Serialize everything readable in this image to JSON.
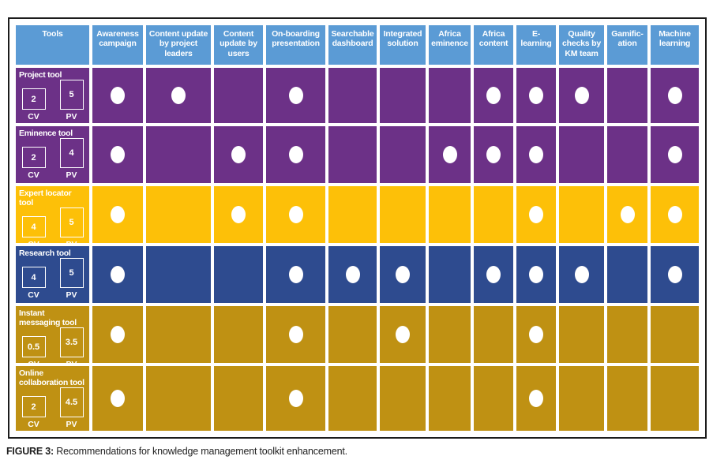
{
  "figure": {
    "caption_label": "FIGURE 3:",
    "caption_text": "Recommendations for knowledge management toolkit enhancement."
  },
  "colors": {
    "header_bg": "#5b9bd5",
    "header_text": "#ffffff",
    "dot": "#ffffff",
    "purple": "#6c3187",
    "yellow": "#fdc008",
    "dark_blue": "#2e4b8f",
    "dark_gold": "#bf9113",
    "frame_border": "#1c1c1c"
  },
  "chart_data": {
    "type": "table",
    "title": "Recommendations for knowledge management toolkit enhancement",
    "columns": [
      "Tools",
      "Awareness campaign",
      "Content update by project leaders",
      "Content update by users",
      "On-boarding presentation",
      "Searchable dashboard",
      "Integrated solution",
      "Africa eminence",
      "Africa content",
      "E-learning",
      "Quality checks by KM team",
      "Gamific-ation",
      "Machine learning"
    ],
    "cv_label": "CV",
    "pv_label": "PV",
    "rows": [
      {
        "tool": "Project tool",
        "cv": "2",
        "pv": "5",
        "color": "purple",
        "dots": [
          1,
          1,
          0,
          1,
          0,
          0,
          0,
          1,
          1,
          1,
          0,
          1
        ]
      },
      {
        "tool": "Eminence tool",
        "cv": "2",
        "pv": "4",
        "color": "purple",
        "dots": [
          1,
          0,
          1,
          1,
          0,
          0,
          1,
          1,
          1,
          0,
          0,
          1
        ]
      },
      {
        "tool": "Expert locator tool",
        "cv": "4",
        "pv": "5",
        "color": "yellow",
        "dots": [
          1,
          0,
          1,
          1,
          0,
          0,
          0,
          0,
          1,
          0,
          1,
          1
        ]
      },
      {
        "tool": "Research tool",
        "cv": "4",
        "pv": "5",
        "color": "dark_blue",
        "dots": [
          1,
          0,
          0,
          1,
          1,
          1,
          0,
          1,
          1,
          1,
          0,
          1
        ]
      },
      {
        "tool": "Instant messaging tool",
        "cv": "0.5",
        "pv": "3.5",
        "color": "dark_gold",
        "dots": [
          1,
          0,
          0,
          1,
          0,
          1,
          0,
          0,
          1,
          0,
          0,
          0
        ]
      },
      {
        "tool": "Online collaboration tool",
        "cv": "2",
        "pv": "4.5",
        "color": "dark_gold",
        "dots": [
          1,
          0,
          0,
          1,
          0,
          0,
          0,
          0,
          1,
          0,
          0,
          0
        ]
      }
    ]
  }
}
